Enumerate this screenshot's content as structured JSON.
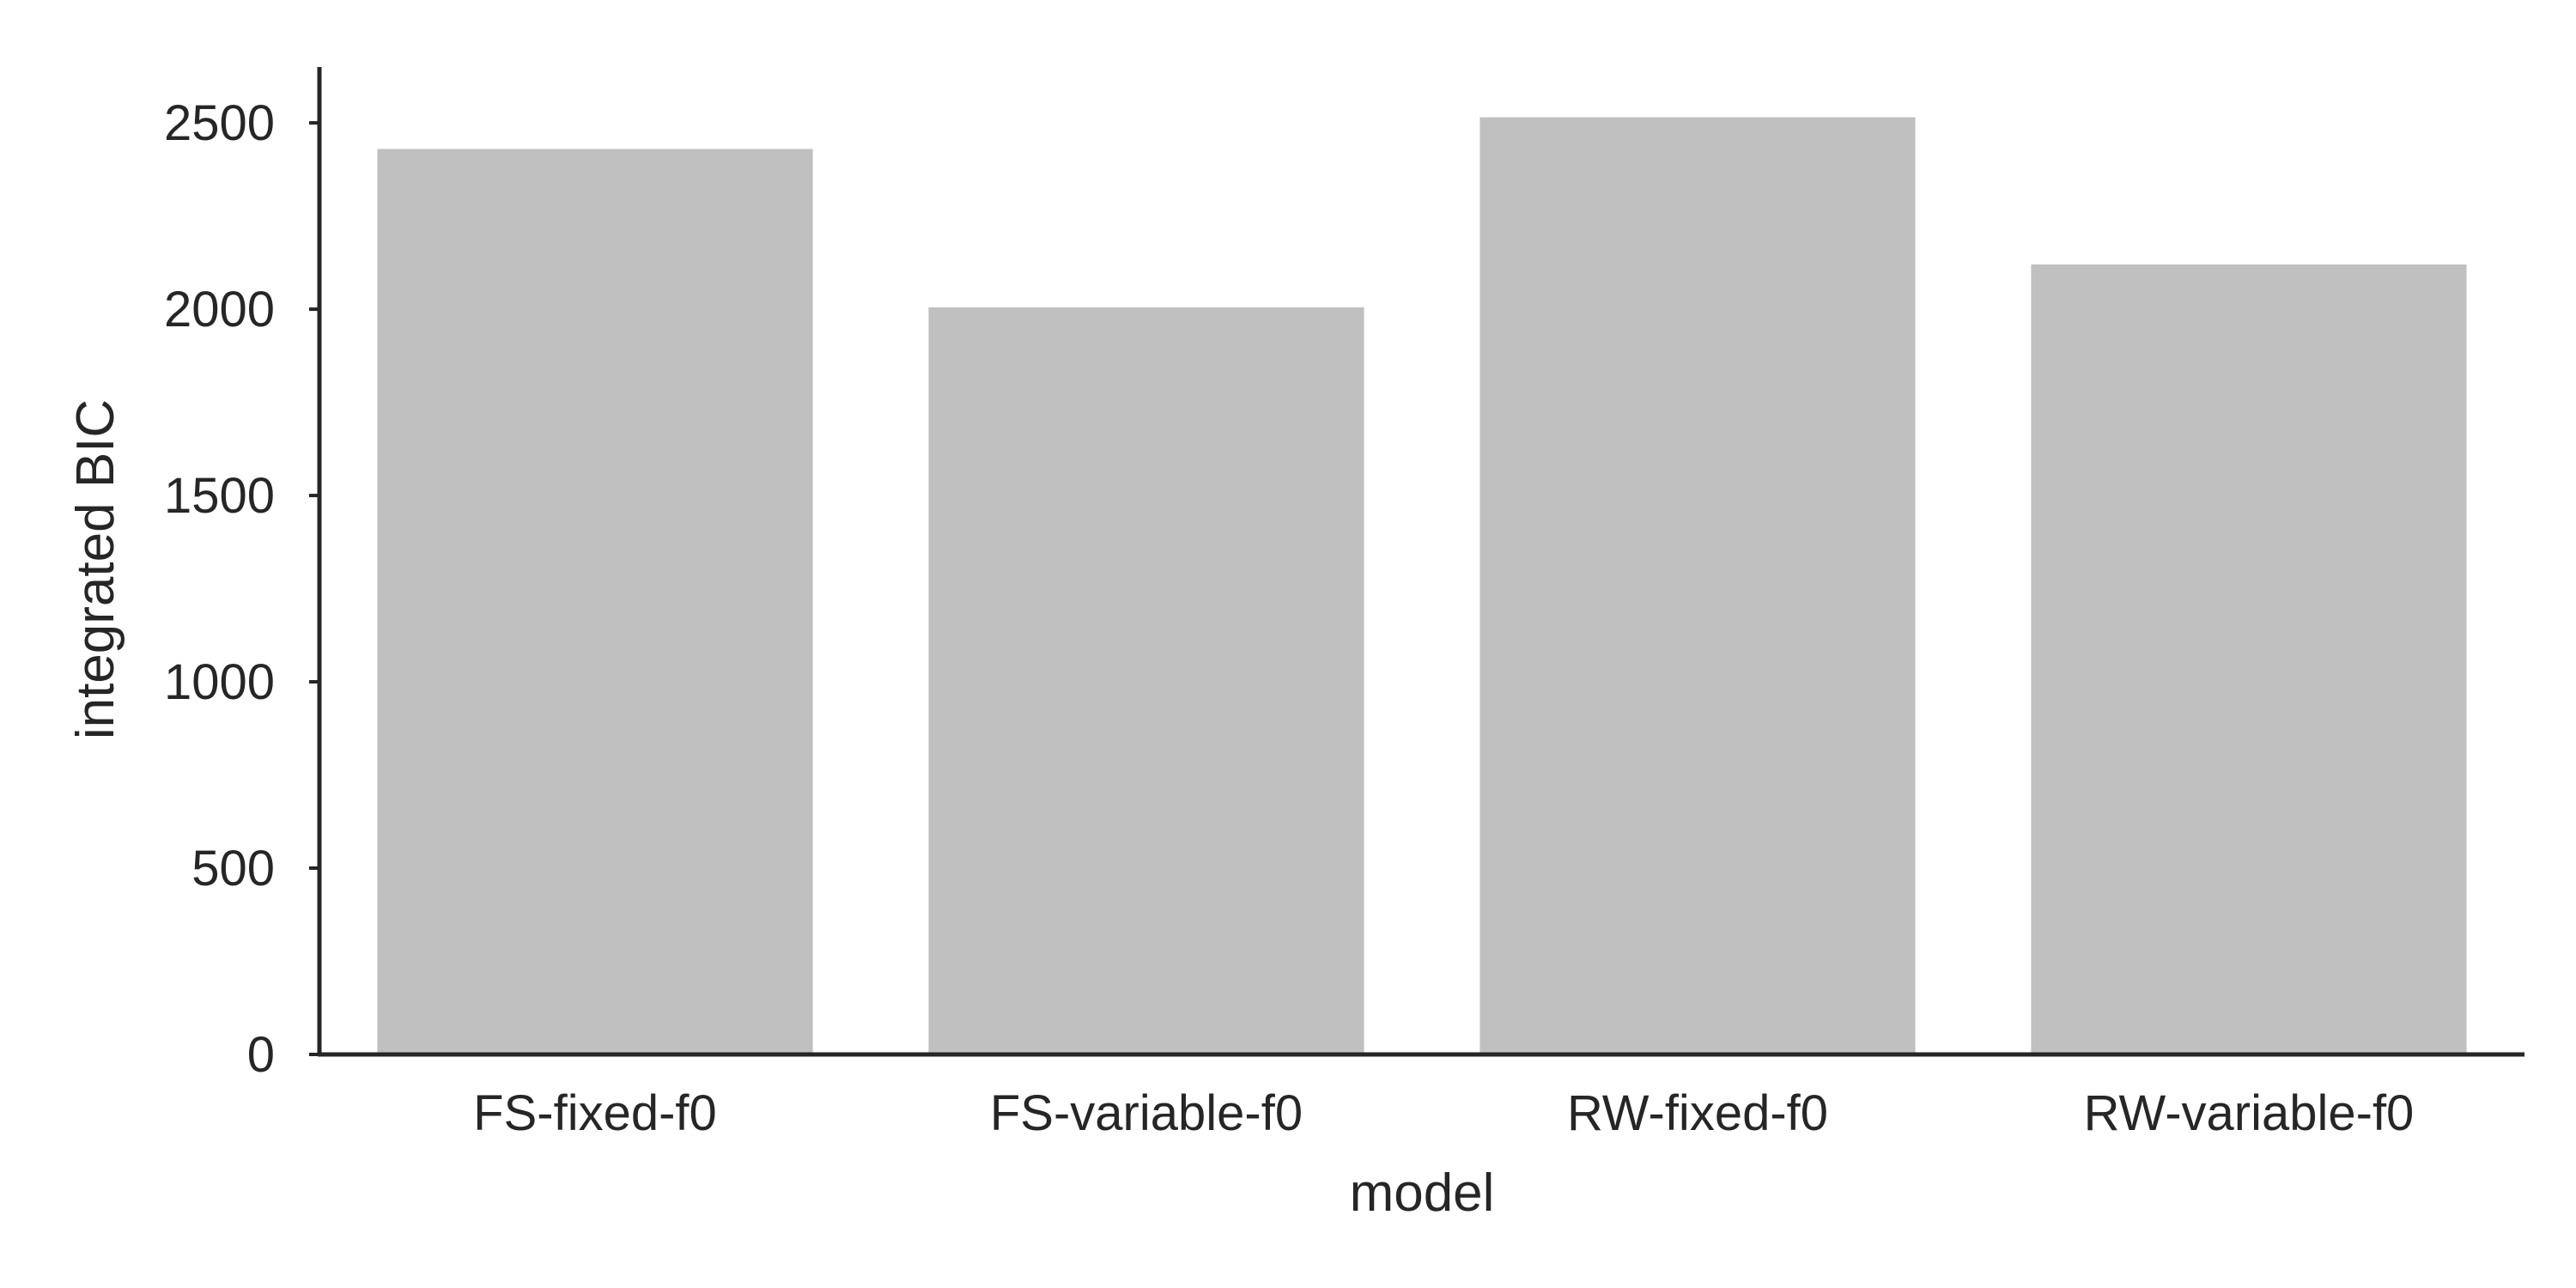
{
  "chart_data": {
    "type": "bar",
    "categories": [
      "FS-fixed-f0",
      "FS-variable-f0",
      "RW-fixed-f0",
      "RW-variable-f0"
    ],
    "values": [
      2430,
      2005,
      2515,
      2120
    ],
    "title": "",
    "xlabel": "model",
    "ylabel": "integrated BIC",
    "ylim": [
      0,
      2650
    ],
    "yticks": [
      0,
      500,
      1000,
      1500,
      2000,
      2500
    ],
    "bar_color": "#c0c0c0",
    "axis_color": "#262626",
    "grid": false,
    "legend": "none"
  }
}
